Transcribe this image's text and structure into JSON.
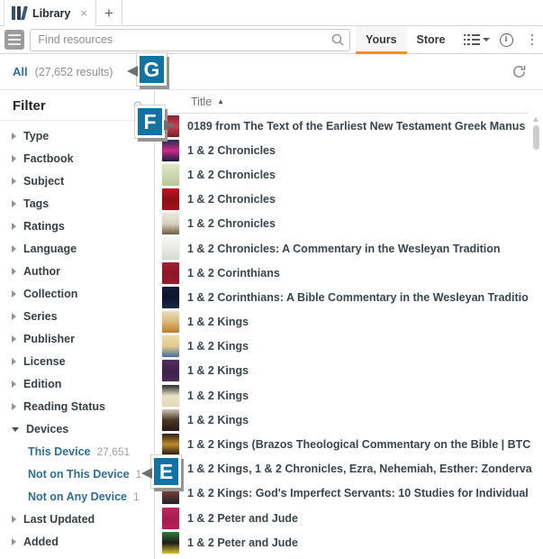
{
  "colors": {
    "accent_orange": "#F78F1E",
    "link_blue": "#2B6E9E",
    "annotation_teal": "#1173A3"
  },
  "tab_bar": {
    "library_tab": {
      "label": "Library",
      "close_glyph": "×"
    },
    "new_tab_glyph": "+"
  },
  "toolbar": {
    "search_placeholder": "Find resources",
    "yours_label": "Yours",
    "store_label": "Store"
  },
  "results_bar": {
    "scope": "All",
    "count_text": "(27,652 results)"
  },
  "filter": {
    "heading": "Filter",
    "groups": [
      {
        "label": "Type"
      },
      {
        "label": "Factbook"
      },
      {
        "label": "Subject"
      },
      {
        "label": "Tags"
      },
      {
        "label": "Ratings"
      },
      {
        "label": "Language"
      },
      {
        "label": "Author"
      },
      {
        "label": "Collection"
      },
      {
        "label": "Series"
      },
      {
        "label": "Publisher"
      },
      {
        "label": "License"
      },
      {
        "label": "Edition"
      },
      {
        "label": "Reading Status"
      },
      {
        "label": "Devices",
        "expanded": true,
        "children": [
          {
            "label": "This Device",
            "count": "27,651"
          },
          {
            "label": "Not on This Device",
            "count": "1"
          },
          {
            "label": "Not on Any Device",
            "count": "1"
          }
        ]
      },
      {
        "label": "Last Updated"
      },
      {
        "label": "Added"
      }
    ]
  },
  "list": {
    "header": {
      "label": "Title",
      "sort_glyph": "▲"
    },
    "rows": [
      {
        "title": "0189 from The Text of the Earliest New Testament Greek Manus",
        "thumb": [
          "#8a2432",
          "#c4414e",
          "#7a1c28"
        ]
      },
      {
        "title": "1 & 2 Chronicles",
        "thumb": [
          "#222c55",
          "#cc2a86",
          "#161f3f"
        ]
      },
      {
        "title": "1 & 2 Chronicles",
        "thumb": [
          "#dfe6c4",
          "#cdd8b0",
          "#b8c49a"
        ]
      },
      {
        "title": "1 & 2 Chronicles",
        "thumb": [
          "#c0161f",
          "#8e0f16",
          "#a3121a"
        ]
      },
      {
        "title": "1 & 2 Chronicles",
        "thumb": [
          "#ece7da",
          "#d9d2bf",
          "#6f5b3e"
        ]
      },
      {
        "title": "1 & 2 Chronicles: A Commentary in the Wesleyan Tradition",
        "thumb": [
          "#f4f4f2",
          "#e9e9e6",
          "#d8d8d4"
        ]
      },
      {
        "title": "1 & 2 Corinthians",
        "thumb": [
          "#a81e33",
          "#8c1627",
          "#9a1a2d"
        ]
      },
      {
        "title": "1 & 2 Corinthians: A Bible Commentary in the Wesleyan Traditio",
        "thumb": [
          "#111c38",
          "#0d1628",
          "#1a2747"
        ]
      },
      {
        "title": "1 & 2 Kings",
        "thumb": [
          "#eadfc2",
          "#d9b878",
          "#c07a2a"
        ]
      },
      {
        "title": "1 & 2 Kings",
        "thumb": [
          "#ecdca6",
          "#e3c98c",
          "#3f6f9e"
        ]
      },
      {
        "title": "1 & 2 Kings",
        "thumb": [
          "#55305f",
          "#3f2148",
          "#4a2955"
        ]
      },
      {
        "title": "1 & 2 Kings",
        "thumb": [
          "#2a2a28",
          "#eae2c6",
          "#e2d9b8"
        ]
      },
      {
        "title": "1 & 2 Kings",
        "thumb": [
          "#cfc6b4",
          "#4a3524",
          "#241812"
        ]
      },
      {
        "title": "1 & 2 Kings (Brazos Theological Commentary on the Bible | BTC",
        "thumb": [
          "#2e2115",
          "#c08a2e",
          "#1f150c"
        ]
      },
      {
        "title": "1 & 2 Kings, 1 & 2 Chronicles, Ezra, Nehemiah, Esther: Zonderva",
        "thumb": [
          "#9a8a6a",
          "#7a6a4e",
          "#6f5f45"
        ]
      },
      {
        "title": "1 & 2 Kings: God's Imperfect Servants: 10 Studies for Individual",
        "thumb": [
          "#b06a3a",
          "#6a3a35",
          "#22222e"
        ]
      },
      {
        "title": "1 & 2 Peter and Jude",
        "thumb": [
          "#c2255e",
          "#a91d4f",
          "#b52055"
        ]
      },
      {
        "title": "1 & 2 Peter and Jude",
        "thumb": [
          "#2f7d33",
          "#1c1c1c",
          "#d6c32a"
        ]
      }
    ]
  },
  "annotations": [
    {
      "letter": "G"
    },
    {
      "letter": "F"
    },
    {
      "letter": "E"
    }
  ]
}
